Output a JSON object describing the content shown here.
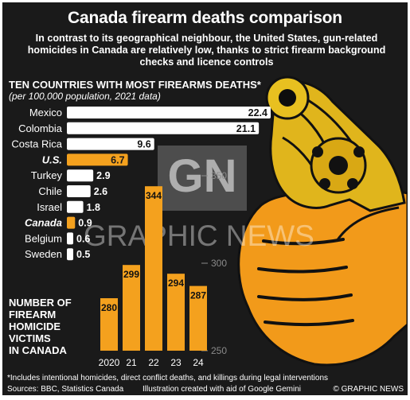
{
  "header": {
    "title": "Canada firearm deaths comparison",
    "subtitle": "In contrast to its geographical neighbour, the United States, gun-related homicides in Canada are relatively low, thanks to strict firearm background checks and licence controls"
  },
  "chart_data": [
    {
      "type": "bar",
      "orientation": "horizontal",
      "title": "TEN COUNTRIES WITH MOST FIREARMS DEATHS*",
      "subtitle": "(per 100,000 population, 2021 data)",
      "categories": [
        "Mexico",
        "Colombia",
        "Costa Rica",
        "U.S.",
        "Turkey",
        "Chile",
        "Israel",
        "Canada",
        "Belgium",
        "Sweden"
      ],
      "values": [
        22.4,
        21.1,
        9.6,
        6.7,
        2.9,
        2.6,
        1.8,
        0.9,
        0.6,
        0.5
      ],
      "value_labels": [
        "22.4",
        "21.1",
        "9.6",
        "6.7",
        "2.9",
        "2.6",
        "1.8",
        "0.9",
        "0.6",
        "0.5"
      ],
      "highlighted": [
        "U.S.",
        "Canada"
      ],
      "xlim": [
        0,
        22.4
      ]
    },
    {
      "type": "bar",
      "orientation": "vertical",
      "title": "NUMBER OF FIREARM HOMICIDE VICTIMS IN CANADA",
      "categories": [
        "2020",
        "21",
        "22",
        "23",
        "24"
      ],
      "values": [
        280,
        299,
        344,
        294,
        287
      ],
      "ylim": [
        250,
        350
      ],
      "yticks": [
        250,
        300,
        350
      ]
    }
  ],
  "footer": {
    "footnote": "*Includes intentional homicides, direct conflict deaths, and killings during legal interventions",
    "sources": "Sources: BBC, Statistics Canada",
    "credit": "Illustration created with aid of Google Gemini",
    "copyright": "© GRAPHIC NEWS"
  },
  "watermark": {
    "logo_letters": "GN",
    "text": "GRAPHIC NEWS"
  },
  "colors": {
    "background": "#1a1a1a",
    "bar_default": "#ffffff",
    "bar_highlight": "#f4a11e",
    "text": "#ffffff",
    "axis_tick": "#8a8a8a"
  },
  "illustration": {
    "icon": "revolver-in-hand-illustration"
  }
}
